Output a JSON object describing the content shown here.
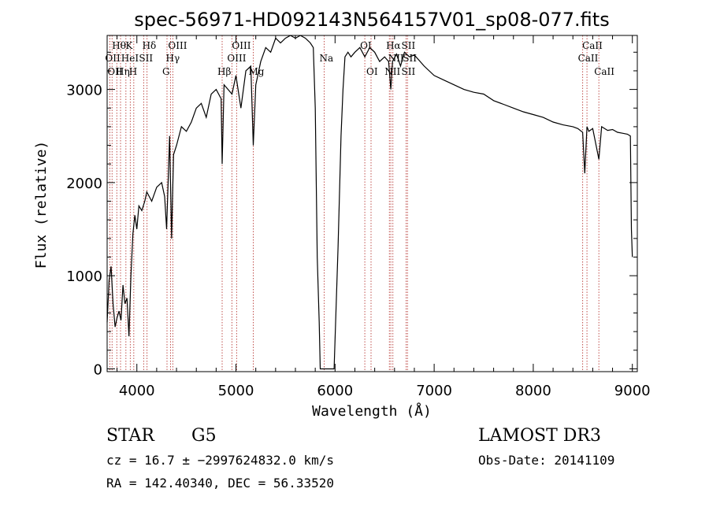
{
  "colors": {
    "line_marker": "#c0504d",
    "spectrum": "#000000",
    "axis": "#000000"
  },
  "chart_data": {
    "type": "line",
    "title": "spec-56971-HD092143N564157V01_sp08-077.fits",
    "xlabel": "Wavelength (Å)",
    "ylabel": "Flux (relative)",
    "xlim": [
      3700,
      9050
    ],
    "ylim": [
      -30,
      3580
    ],
    "xticks": [
      4000,
      5000,
      6000,
      7000,
      8000,
      9000
    ],
    "yticks": [
      0,
      1000,
      2000,
      3000
    ],
    "spectrum": {
      "x": [
        3700,
        3720,
        3740,
        3760,
        3780,
        3800,
        3820,
        3840,
        3860,
        3880,
        3900,
        3920,
        3940,
        3960,
        3980,
        4000,
        4020,
        4050,
        4080,
        4100,
        4150,
        4200,
        4250,
        4280,
        4300,
        4330,
        4350,
        4370,
        4400,
        4450,
        4500,
        4550,
        4600,
        4650,
        4700,
        4750,
        4800,
        4850,
        4861,
        4880,
        4920,
        4960,
        5000,
        5050,
        5100,
        5150,
        5175,
        5200,
        5250,
        5300,
        5350,
        5400,
        5450,
        5500,
        5550,
        5600,
        5650,
        5700,
        5750,
        5780,
        5800,
        5820,
        5840,
        5850,
        5870,
        5893,
        5910,
        5930,
        5950,
        5990,
        6030,
        6060,
        6080,
        6100,
        6130,
        6160,
        6200,
        6250,
        6300,
        6350,
        6400,
        6450,
        6500,
        6540,
        6563,
        6580,
        6620,
        6660,
        6700,
        6750,
        6800,
        6900,
        7000,
        7100,
        7200,
        7300,
        7400,
        7500,
        7600,
        7700,
        7800,
        7900,
        8000,
        8100,
        8200,
        8300,
        8400,
        8450,
        8498,
        8520,
        8542,
        8560,
        8600,
        8662,
        8690,
        8750,
        8800,
        8850,
        8900,
        8950,
        8980,
        8990,
        9000
      ],
      "y": [
        500,
        950,
        1100,
        700,
        450,
        550,
        620,
        520,
        900,
        700,
        760,
        350,
        1000,
        1450,
        1650,
        1500,
        1750,
        1700,
        1800,
        1900,
        1800,
        1950,
        2000,
        1850,
        1500,
        2500,
        1400,
        2300,
        2400,
        2600,
        2550,
        2650,
        2800,
        2850,
        2700,
        2950,
        3000,
        2900,
        2200,
        3050,
        3000,
        2950,
        3150,
        2800,
        3200,
        3250,
        2400,
        3050,
        3300,
        3450,
        3400,
        3550,
        3500,
        3550,
        3600,
        3550,
        3600,
        3550,
        3500,
        3450,
        2800,
        1200,
        500,
        0,
        0,
        0,
        0,
        0,
        0,
        0,
        1300,
        2500,
        3000,
        3350,
        3400,
        3350,
        3400,
        3450,
        3350,
        3450,
        3400,
        3300,
        3350,
        3300,
        3000,
        3300,
        3380,
        3250,
        3400,
        3350,
        3370,
        3250,
        3150,
        3100,
        3050,
        3000,
        2970,
        2950,
        2880,
        2840,
        2800,
        2760,
        2730,
        2700,
        2650,
        2620,
        2600,
        2580,
        2540,
        2100,
        2600,
        2550,
        2580,
        2250,
        2600,
        2560,
        2570,
        2540,
        2530,
        2520,
        2500,
        1500,
        1200
      ]
    },
    "line_markers": [
      {
        "wavelength": 3727,
        "label": "OII"
      },
      {
        "wavelength": 3750,
        "label": "OII"
      },
      {
        "wavelength": 3798,
        "label": "Hθ"
      },
      {
        "wavelength": 3835,
        "label": "Hη"
      },
      {
        "wavelength": 3889,
        "label": "HeI"
      },
      {
        "wavelength": 3934,
        "label": "K"
      },
      {
        "wavelength": 3969,
        "label": "H"
      },
      {
        "wavelength": 4069,
        "label": "SII"
      },
      {
        "wavelength": 4102,
        "label": "Hδ"
      },
      {
        "wavelength": 4304,
        "label": "G"
      },
      {
        "wavelength": 4340,
        "label": "Hγ"
      },
      {
        "wavelength": 4363,
        "label": "OIII"
      },
      {
        "wavelength": 4861,
        "label": "Hβ"
      },
      {
        "wavelength": 4959,
        "label": "OIII"
      },
      {
        "wavelength": 5007,
        "label": "OIII"
      },
      {
        "wavelength": 5175,
        "label": "Mg"
      },
      {
        "wavelength": 5890,
        "label": "Na"
      },
      {
        "wavelength": 6300,
        "label": "OI"
      },
      {
        "wavelength": 6363,
        "label": "OI"
      },
      {
        "wavelength": 6548,
        "label": "NII"
      },
      {
        "wavelength": 6563,
        "label": "Hα"
      },
      {
        "wavelength": 6583,
        "label": "NII"
      },
      {
        "wavelength": 6717,
        "label": "SII"
      },
      {
        "wavelength": 6731,
        "label": "SII"
      },
      {
        "wavelength": 8498,
        "label": "CaII"
      },
      {
        "wavelength": 8542,
        "label": "CaII"
      },
      {
        "wavelength": 8662,
        "label": "CaII"
      }
    ]
  },
  "info": {
    "object_class": "STAR",
    "subclass": "G5",
    "survey": "LAMOST DR3",
    "redshift_line": "cz = 16.7 ± −2997624832.0 km/s",
    "obs_date": "Obs-Date: 20141109",
    "coords": "RA = 142.40340, DEC =  56.33520"
  },
  "line_labels_visible": {
    "row1": [
      {
        "text": "Hθ",
        "wavelength": 3798
      },
      {
        "text": "K",
        "wavelength": 3934
      },
      {
        "text": "Hδ",
        "wavelength": 4102
      },
      {
        "text": "OIII",
        "wavelength": 4363
      },
      {
        "text": "OIII",
        "wavelength": 5007
      },
      {
        "text": "OI",
        "wavelength": 6300
      },
      {
        "text": "Hα",
        "wavelength": 6563
      },
      {
        "text": "SII",
        "wavelength": 6717
      },
      {
        "text": "CaII",
        "wavelength": 8542
      }
    ],
    "row2": [
      {
        "text": "OII",
        "wavelength": 3727
      },
      {
        "text": "HeI",
        "wavelength": 3889
      },
      {
        "text": "SII",
        "wavelength": 4069
      },
      {
        "text": "Hγ",
        "wavelength": 4340
      },
      {
        "text": "OIII",
        "wavelength": 4959
      },
      {
        "text": "Na",
        "wavelength": 5890
      },
      {
        "text": "NII",
        "wavelength": 6583
      },
      {
        "text": "SII",
        "wavelength": 6731
      },
      {
        "text": "CaII",
        "wavelength": 8498
      }
    ],
    "row3": [
      {
        "text": "OII",
        "wavelength": 3750
      },
      {
        "text": "Hη",
        "wavelength": 3835
      },
      {
        "text": "H",
        "wavelength": 3969
      },
      {
        "text": "G",
        "wavelength": 4304
      },
      {
        "text": "Hβ",
        "wavelength": 4861
      },
      {
        "text": "Mg",
        "wavelength": 5175
      },
      {
        "text": "OI",
        "wavelength": 6363
      },
      {
        "text": "NII",
        "wavelength": 6548
      },
      {
        "text": "SII",
        "wavelength": 6717
      },
      {
        "text": "CaII",
        "wavelength": 8662
      }
    ]
  }
}
